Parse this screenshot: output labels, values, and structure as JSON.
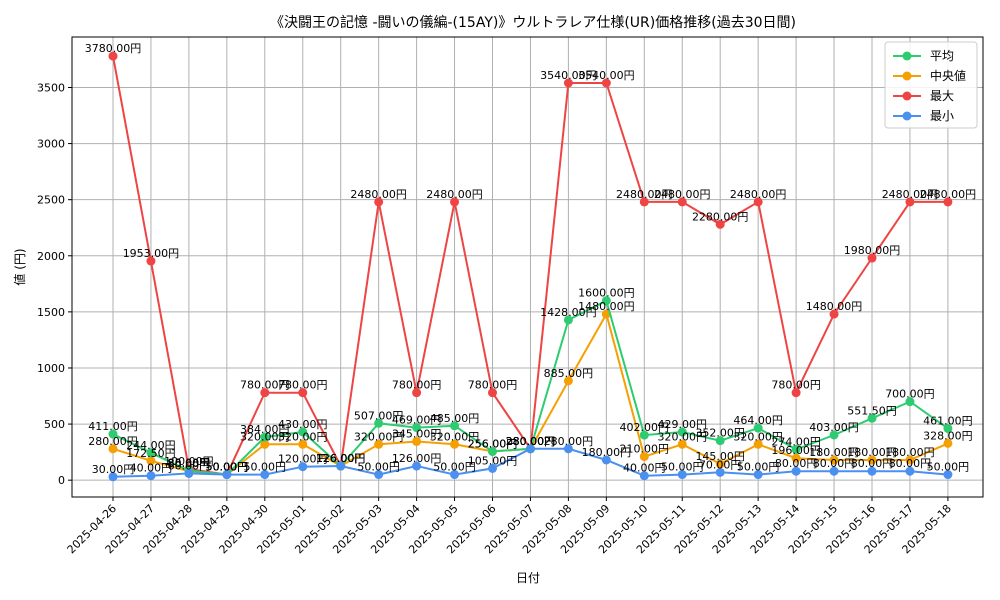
{
  "chart_data": {
    "type": "line",
    "title": "《決闘王の記憶 -闘いの儀編-(15AY)》ウルトラレア仕様(UR)価格推移(過去30日間)",
    "xlabel": "日付",
    "ylabel": "値 (円)",
    "ylim": [
      -150,
      3950
    ],
    "yticks": [
      0,
      500,
      1000,
      1500,
      2000,
      2500,
      3000,
      3500
    ],
    "grid": true,
    "legend_position": "top-right",
    "categories": [
      "2025-04-26",
      "2025-04-27",
      "2025-04-28",
      "2025-04-29",
      "2025-04-30",
      "2025-05-01",
      "2025-05-02",
      "2025-05-03",
      "2025-05-04",
      "2025-05-05",
      "2025-05-06",
      "2025-05-07",
      "2025-05-08",
      "2025-05-09",
      "2025-05-10",
      "2025-05-11",
      "2025-05-12",
      "2025-05-13",
      "2025-05-14",
      "2025-05-15",
      "2025-05-16",
      "2025-05-17",
      "2025-05-18"
    ],
    "series": [
      {
        "name": "平均",
        "color": "#2ecc71",
        "values": [
          411,
          244,
          85,
          50,
          384,
          430,
          126,
          507,
          469,
          485,
          256,
          280,
          1428,
          1600,
          402,
          429,
          352,
          464,
          274,
          403,
          551.5,
          700,
          461
        ],
        "labels": [
          "411.00円",
          "244.00円",
          "85.00円",
          "50.00円",
          "384.00円",
          "430.00円",
          "126.00円",
          "507.00円",
          "469.00円",
          "485.00円",
          "256.00円",
          "280.00円",
          "1428.00円",
          "1600.00円",
          "402.00円",
          "429.00円",
          "352.00円",
          "464.00円",
          "274.00円",
          "403.00円",
          "551.50円",
          "700.00円",
          "461.00円"
        ]
      },
      {
        "name": "中央値",
        "color": "#f5a000",
        "values": [
          280,
          172.5,
          80,
          50,
          320,
          320,
          126,
          320,
          345,
          320,
          256,
          280,
          885,
          1480,
          210,
          320,
          145,
          320,
          196,
          180,
          180,
          180,
          328
        ],
        "labels": [
          "280.00円",
          "172.50円",
          "80.00円",
          "50.00円",
          "320.00円",
          "320.00円",
          "126.00円",
          "320.00円",
          "345.00円",
          "320.00円",
          "256.00円",
          "280.00円",
          "885.00円",
          "1480.00円",
          "210.00円",
          "320.00円",
          "145.00円",
          "320.00円",
          "196.00円",
          "180.00円",
          "180.00円",
          "180.00円",
          "328.00円"
        ]
      },
      {
        "name": "最大",
        "color": "#ef4444",
        "values": [
          3780,
          1953,
          100,
          50,
          780,
          780,
          126,
          2480,
          780,
          2480,
          780,
          280,
          3540,
          3540,
          2480,
          2480,
          2280,
          2480,
          780,
          1480,
          1980,
          2480,
          2480
        ],
        "labels": [
          "3780.00円",
          "1953.00円",
          "100.00円",
          "50.00円",
          "780.00円",
          "780.00円",
          "126.00円",
          "2480.00円",
          "780.00円",
          "2480.00円",
          "780.00円",
          "280.00円",
          "3540.00円",
          "3540.00円",
          "2480.00円",
          "2480.00円",
          "2280.00円",
          "2480.00円",
          "780.00円",
          "1480.00円",
          "1980.00円",
          "2480.00円",
          "2480.00円"
        ]
      },
      {
        "name": "最小",
        "color": "#4a90f0",
        "values": [
          30,
          40,
          60,
          50,
          50,
          120,
          126,
          50,
          126,
          50,
          105,
          280,
          280,
          180,
          40,
          50,
          70,
          50,
          80,
          80,
          80,
          80,
          50
        ],
        "labels": [
          "30.00円",
          "40.00円",
          "60.00円",
          "50.00円",
          "50.00円",
          "120.00円",
          "126.00円",
          "50.00円",
          "126.00円",
          "50.00円",
          "105.00円",
          "280.00円",
          "280.00円",
          "180.00円",
          "40.00円",
          "50.00円",
          "70.00円",
          "50.00円",
          "80.00円",
          "80.00円",
          "80.00円",
          "80.00円",
          "50.00円"
        ]
      }
    ]
  }
}
